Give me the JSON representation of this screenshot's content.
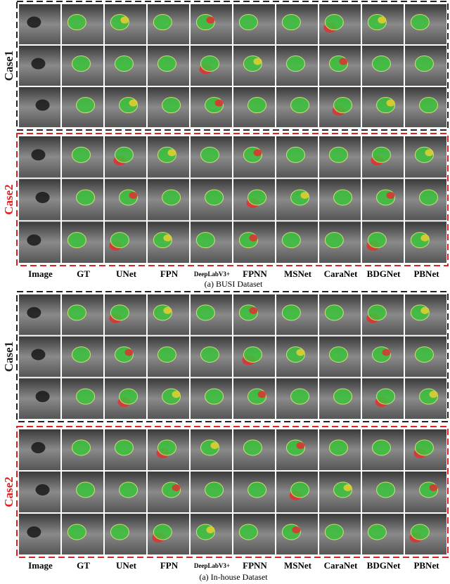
{
  "panels": [
    {
      "cases": [
        "Case1",
        "Case2"
      ],
      "columns": [
        "Image",
        "GT",
        "UNet",
        "FPN",
        "DeepLabV3+",
        "FPNN",
        "MSNet",
        "CaraNet",
        "BDGNet",
        "PBNet"
      ],
      "caption": "(a) BUSI Dataset"
    },
    {
      "cases": [
        "Case1",
        "Case2"
      ],
      "columns": [
        "Image",
        "GT",
        "UNet",
        "FPN",
        "DeepLabV3+",
        "FPNN",
        "MSNet",
        "CaraNet",
        "BDGNet",
        "PBNet"
      ],
      "caption": "(a) In-house Dataset"
    }
  ]
}
